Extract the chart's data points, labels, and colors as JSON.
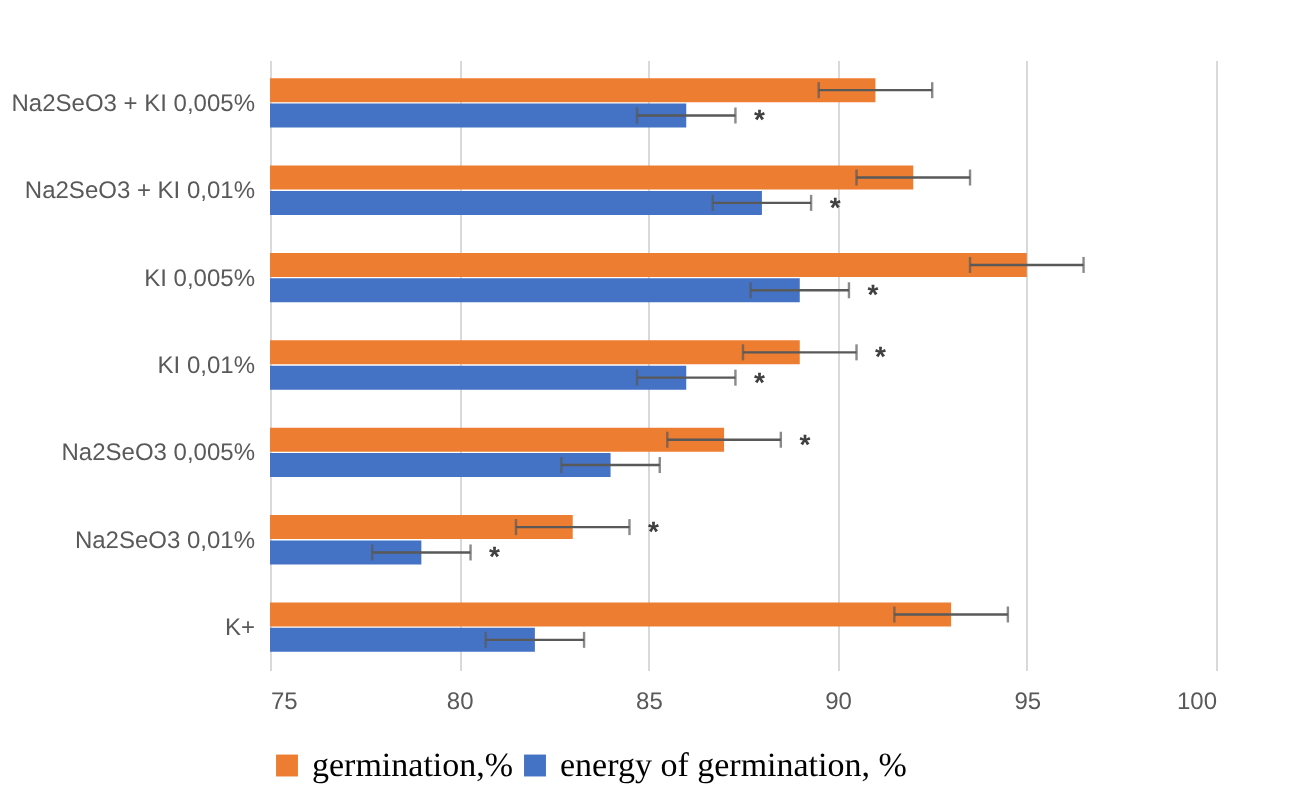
{
  "chart_data": {
    "type": "bar",
    "orientation": "horizontal",
    "categories": [
      "Na2SeO3 + KI 0,005%",
      "Na2SeO3 + KI 0,01%",
      "KI 0,005%",
      "KI 0,01%",
      "Na2SeO3 0,005%",
      "Na2SeO3 0,01%",
      "K+"
    ],
    "series": [
      {
        "name": "germination,%",
        "color": "#ed7d31",
        "values": [
          91,
          92,
          95,
          89,
          87,
          83,
          93
        ],
        "errors": [
          1.5,
          1.5,
          1.5,
          1.5,
          1.5,
          1.5,
          1.5
        ]
      },
      {
        "name": "energy of germination, %",
        "color": "#4472c4",
        "values": [
          86,
          88,
          89,
          86,
          84,
          79,
          82
        ],
        "errors": [
          1.3,
          1.3,
          1.3,
          1.3,
          1.3,
          1.3,
          1.3
        ]
      }
    ],
    "xlim": [
      75,
      100
    ],
    "xticks": [
      75,
      80,
      85,
      90,
      95,
      100
    ],
    "grid": "x",
    "legend": "bottom",
    "annotations": [
      {
        "text": "*",
        "x": 87.3,
        "y": "Na2SeO3 + KI 0,005%"
      },
      {
        "text": "*",
        "x": 89.3,
        "y": "Na2SeO3 + KI 0,01%"
      },
      {
        "text": "*",
        "x": 90.3,
        "y": "KI 0,005%"
      },
      {
        "text": "*",
        "x": 90.5,
        "y": "KI 0,01%"
      },
      {
        "text": "*",
        "x": 87.3,
        "y": "KI 0,01%"
      },
      {
        "text": "*",
        "x": 88.5,
        "y": "Na2SeO3 0,005%"
      },
      {
        "text": "*",
        "x": 84.5,
        "y": "Na2SeO3 0,01%"
      },
      {
        "text": "*",
        "x": 80.3,
        "y": "Na2SeO3 0,01%"
      }
    ]
  }
}
